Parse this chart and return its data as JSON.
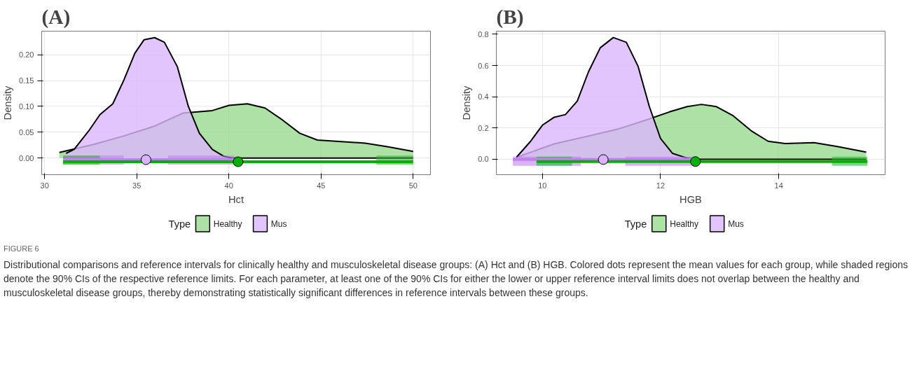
{
  "chart_data": [
    {
      "type": "area",
      "title": "(A)",
      "xlabel": "Hct",
      "ylabel": "Density",
      "legend_title": "Type",
      "legend": "bottom",
      "grid": true,
      "xlim": [
        29.84,
        50.94
      ],
      "ylim": [
        -0.032,
        0.2455
      ],
      "xticks": [
        30,
        35,
        40,
        45,
        50
      ],
      "yticks": [
        {
          "value": 0,
          "label": "0.00"
        },
        {
          "value": 0.05,
          "label": "0.05"
        },
        {
          "value": 0.1,
          "label": "0.10"
        },
        {
          "value": 0.15,
          "label": "0.15"
        },
        {
          "value": 0.2,
          "label": "0.20"
        }
      ],
      "series": [
        {
          "name": "Healthy",
          "color": "#99d98f",
          "x": [
            30.8,
            32.7,
            34.3,
            35.9,
            37.5,
            39.1,
            40.0,
            41.0,
            41.96,
            42.9,
            43.85,
            44.8,
            46.1,
            47.4,
            48.6,
            50.0
          ],
          "values": [
            0.011,
            0.027,
            0.043,
            0.061,
            0.087,
            0.092,
            0.102,
            0.105,
            0.097,
            0.074,
            0.048,
            0.035,
            0.032,
            0.029,
            0.022,
            0.013
          ]
        },
        {
          "name": "Mus",
          "color": "#dcb6fc",
          "x": [
            31.16,
            31.6,
            32.4,
            33.0,
            33.7,
            34.3,
            34.9,
            35.4,
            35.97,
            36.5,
            37.2,
            37.8,
            38.4,
            39.1,
            39.7,
            40.2,
            42.3,
            50.0
          ],
          "values": [
            0.009,
            0.017,
            0.053,
            0.084,
            0.105,
            0.151,
            0.203,
            0.229,
            0.233,
            0.224,
            0.177,
            0.1,
            0.048,
            0.017,
            0.004,
            0,
            0,
            0
          ]
        },
        {
          "color": "#c080f0",
          "type": "line",
          "x": [
            31.0,
            40.3
          ],
          "values": [
            -0.003,
            -0.003
          ]
        },
        {
          "color": "#00b000",
          "type": "line",
          "x": [
            31.0,
            50.0
          ],
          "values": [
            -0.007,
            -0.007
          ]
        },
        {
          "color": "#d9b3ff",
          "type": "scatter",
          "marker": "circle",
          "x": [
            35.5
          ],
          "values": [
            -0.003
          ]
        },
        {
          "color": "#00b000",
          "type": "scatter",
          "marker": "circle",
          "x": [
            40.5
          ],
          "values": [
            -0.007
          ]
        }
      ],
      "bands": [
        {
          "axis": "x",
          "from": 31.0,
          "to": 34.3,
          "color": "#c080f0"
        },
        {
          "axis": "x",
          "from": 36.7,
          "to": 40.3,
          "color": "#c080f0"
        },
        {
          "axis": "x",
          "from": 31.0,
          "to": 33.0,
          "color": "#33b333"
        },
        {
          "axis": "x",
          "from": 48.0,
          "to": 50.0,
          "color": "#33b333"
        }
      ],
      "annotations": [
        "FIGURE 6",
        "Distributional comparisons and reference intervals for clinically healthy and musculoskeletal disease groups: (A) Hct and (B) HGB. Colored dots represent the mean values for each group, while shaded regions denote the 90% CIs of the respective reference limits. For each parameter, at least one of the 90% CIs for either the lower or upper reference interval limits does not overlap between the healthy and musculoskeletal disease groups, thereby demonstrating statistically significant differences in reference intervals between these groups."
      ]
    },
    {
      "type": "area",
      "title": "(B)",
      "xlabel": "HGB",
      "ylabel": "Density",
      "legend_title": "Type",
      "legend": "bottom",
      "grid": true,
      "xlim": [
        9.22,
        15.8
      ],
      "ylim": [
        -0.099,
        0.82
      ],
      "xticks": [
        10,
        12,
        14
      ],
      "yticks": [
        {
          "value": 0,
          "label": "0.0"
        },
        {
          "value": 0.2,
          "label": "0.2"
        },
        {
          "value": 0.4,
          "label": "0.4"
        },
        {
          "value": 0.6,
          "label": "0.6"
        },
        {
          "value": 0.8,
          "label": "0.8"
        }
      ],
      "series": [
        {
          "name": "Healthy",
          "color": "#99d98f",
          "x": [
            9.56,
            10.2,
            10.78,
            11.27,
            11.76,
            12.15,
            12.45,
            12.69,
            12.94,
            13.23,
            13.53,
            13.82,
            14.11,
            14.6,
            14.99,
            15.48
          ],
          "values": [
            0.012,
            0.098,
            0.149,
            0.192,
            0.252,
            0.303,
            0.337,
            0.351,
            0.337,
            0.278,
            0.183,
            0.115,
            0.101,
            0.106,
            0.081,
            0.046
          ]
        },
        {
          "name": "Mus",
          "color": "#dcb6fc",
          "x": [
            9.56,
            9.8,
            10.0,
            10.2,
            10.39,
            10.59,
            10.78,
            10.98,
            11.2,
            11.42,
            11.62,
            11.81,
            12.0,
            12.2,
            12.45,
            12.64,
            15.48
          ],
          "values": [
            0.012,
            0.115,
            0.218,
            0.269,
            0.286,
            0.372,
            0.56,
            0.714,
            0.779,
            0.749,
            0.594,
            0.337,
            0.132,
            0.038,
            0.007,
            0,
            0
          ]
        },
        {
          "color": "#c080f0",
          "type": "line",
          "x": [
            9.5,
            12.6
          ],
          "values": [
            -0.002,
            -0.002
          ]
        },
        {
          "color": "#00b000",
          "type": "line",
          "x": [
            9.9,
            15.5
          ],
          "values": [
            -0.015,
            -0.015
          ]
        },
        {
          "color": "#d9b3ff",
          "type": "scatter",
          "marker": "circle",
          "x": [
            11.03
          ],
          "values": [
            -0.002
          ]
        },
        {
          "color": "#00b000",
          "type": "scatter",
          "marker": "circle",
          "x": [
            12.59
          ],
          "values": [
            -0.015
          ]
        }
      ],
      "bands": [
        {
          "axis": "x",
          "from": 9.5,
          "to": 10.65,
          "color": "#c080f0"
        },
        {
          "axis": "x",
          "from": 11.4,
          "to": 12.6,
          "color": "#c080f0"
        },
        {
          "axis": "x",
          "from": 9.9,
          "to": 10.5,
          "color": "#33b333"
        },
        {
          "axis": "x",
          "from": 14.9,
          "to": 15.5,
          "color": "#33b333"
        }
      ]
    }
  ]
}
